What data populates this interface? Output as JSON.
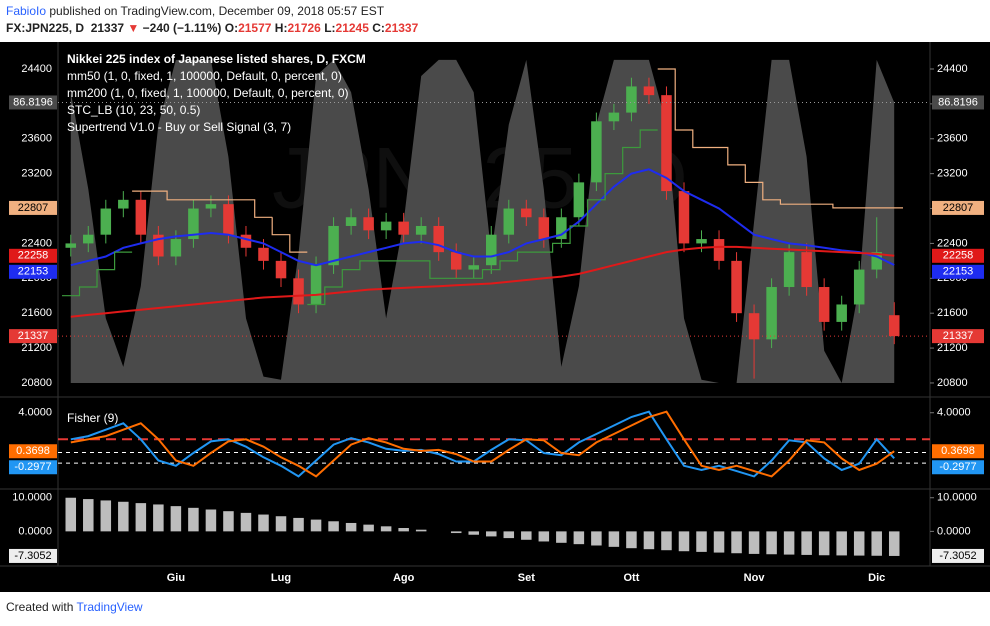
{
  "header": {
    "author": "FabioIo",
    "published": "published on TradingView.com, December 09, 2018 05:57 EST",
    "symbol": "FX:JPN225, D",
    "last": "21337",
    "arrow": "▼",
    "change": "−240 (−1.11%)",
    "open_label": "O:",
    "open": "21577",
    "high_label": "H:",
    "high": "21726",
    "low_label": "L:",
    "low": "21245",
    "close_label": "C:",
    "close": "21337"
  },
  "watermark": "JPN225, D",
  "chart_data": [
    {
      "type": "candlestick",
      "title": "Nikkei 225 index of Japanese listed shares, D, FXCM",
      "categories": [
        null,
        null,
        null,
        null,
        null,
        null,
        "Giu",
        null,
        null,
        null,
        null,
        null,
        "Lug",
        null,
        null,
        null,
        null,
        null,
        null,
        "Ago",
        null,
        null,
        null,
        null,
        null,
        null,
        "Set",
        null,
        null,
        null,
        null,
        null,
        "Ott",
        null,
        null,
        null,
        null,
        null,
        null,
        "Nov",
        null,
        null,
        null,
        null,
        null,
        null,
        "Dic",
        null
      ],
      "open": [
        22350,
        22400,
        22500,
        22800,
        22900,
        22500,
        22250,
        22450,
        22800,
        22850,
        22500,
        22350,
        22200,
        22000,
        21700,
        22150,
        22600,
        22700,
        22550,
        22650,
        22500,
        22600,
        22300,
        22100,
        22150,
        22500,
        22800,
        22700,
        22450,
        22700,
        23100,
        23800,
        23900,
        24200,
        24100,
        23000,
        22400,
        22450,
        22200,
        21600,
        21300,
        21900,
        22300,
        21900,
        21500,
        21700,
        22100,
        21577
      ],
      "high": [
        22500,
        22600,
        22900,
        23000,
        23000,
        22600,
        22550,
        22900,
        22950,
        22950,
        22600,
        22450,
        22300,
        22100,
        22250,
        22700,
        22800,
        22800,
        22750,
        22750,
        22700,
        22700,
        22400,
        22250,
        22600,
        22900,
        22900,
        22800,
        22800,
        23200,
        23900,
        24000,
        24300,
        24300,
        24200,
        23100,
        22550,
        22550,
        22300,
        21700,
        22000,
        22400,
        22400,
        22000,
        21800,
        22200,
        22700,
        21726
      ],
      "low": [
        22250,
        22300,
        22400,
        22700,
        22400,
        22150,
        22150,
        22350,
        22700,
        22400,
        22250,
        22100,
        21900,
        21600,
        21600,
        22050,
        22500,
        22450,
        22450,
        22400,
        22400,
        22200,
        22000,
        22000,
        22050,
        22400,
        22600,
        22350,
        22350,
        22600,
        23000,
        23700,
        23800,
        24000,
        22900,
        22300,
        22300,
        22100,
        21500,
        20850,
        21200,
        21800,
        21800,
        21400,
        21400,
        21600,
        22000,
        21245
      ],
      "close": [
        22400,
        22500,
        22800,
        22900,
        22500,
        22250,
        22450,
        22800,
        22850,
        22500,
        22350,
        22200,
        22000,
        21700,
        22150,
        22600,
        22700,
        22550,
        22650,
        22500,
        22600,
        22300,
        22100,
        22150,
        22500,
        22800,
        22700,
        22450,
        22700,
        23100,
        23800,
        23900,
        24200,
        24100,
        23000,
        22400,
        22450,
        22200,
        21600,
        21300,
        21900,
        22300,
        21900,
        21500,
        21700,
        22100,
        22300,
        21337
      ],
      "up_color": "#4caf50",
      "down_color": "#e53935",
      "ylim": [
        20662,
        24675
      ],
      "yticks": [
        20800,
        21200,
        21600,
        22000,
        22400,
        22800,
        23200,
        23600,
        24000,
        24400
      ],
      "y2lim": [
        -3.7,
        104.6
      ],
      "series": [
        {
          "name": "mm50 (1, 0, fixed, 1, 100000, Default, 0, percent, 0)",
          "kind": "line",
          "color": "#1e2cf0",
          "values": [
            22150,
            22200,
            22250,
            22350,
            22400,
            22450,
            22480,
            22500,
            22520,
            22500,
            22450,
            22400,
            22300,
            22200,
            22150,
            22200,
            22250,
            22300,
            22350,
            22400,
            22420,
            22380,
            22300,
            22250,
            22250,
            22300,
            22400,
            22450,
            22500,
            22650,
            22850,
            23050,
            23200,
            23250,
            23150,
            23000,
            22900,
            22800,
            22650,
            22500,
            22450,
            22400,
            22380,
            22350,
            22320,
            22300,
            22250,
            22153
          ]
        },
        {
          "name": "mm200 (1, 0, fixed, 1, 100000, Default, 0, percent, 0)",
          "kind": "line",
          "color": "#e01919",
          "values": [
            21560,
            21580,
            21600,
            21620,
            21640,
            21660,
            21680,
            21700,
            21720,
            21740,
            21760,
            21780,
            21790,
            21800,
            21810,
            21830,
            21850,
            21870,
            21880,
            21890,
            21900,
            21910,
            21920,
            21930,
            21940,
            21960,
            21980,
            22000,
            22020,
            22050,
            22100,
            22150,
            22200,
            22250,
            22300,
            22330,
            22350,
            22360,
            22360,
            22350,
            22340,
            22330,
            22320,
            22310,
            22300,
            22290,
            22280,
            22258
          ]
        },
        {
          "name": "STC_LB (10, 23, 50, 0.5)",
          "kind": "area",
          "axis": "y2",
          "color": "#4a4a4a",
          "values": [
            90,
            60,
            20,
            5,
            30,
            80,
            100,
            100,
            100,
            70,
            20,
            2,
            1,
            40,
            95,
            100,
            90,
            60,
            20,
            50,
            95,
            100,
            100,
            90,
            40,
            80,
            100,
            60,
            5,
            30,
            80,
            100,
            100,
            100,
            80,
            20,
            1,
            0,
            0,
            50,
            100,
            100,
            70,
            10,
            0,
            30,
            100,
            86.8196
          ]
        },
        {
          "name": "Supertrend V1.0 - Buy or Sell Signal (3, 7)",
          "kind": "step",
          "color": "#f0b080",
          "up_color": "#3c9a3c",
          "values": [
            21800,
            21900,
            22100,
            22300,
            23000,
            23000,
            22900,
            22900,
            22900,
            22900,
            22900,
            22700,
            22500,
            22300,
            21700,
            21900,
            22100,
            22200,
            22200,
            22200,
            22200,
            22000,
            22000,
            22000,
            22100,
            22200,
            22300,
            22300,
            22400,
            22600,
            22900,
            23200,
            23500,
            23700,
            24400,
            23700,
            23500,
            23500,
            23300,
            23100,
            22900,
            22850,
            22850,
            22850,
            22807,
            22807,
            22807,
            22807
          ]
        }
      ]
    },
    {
      "type": "line",
      "title": "Fisher (9)",
      "ylim": [
        -3,
        5.2
      ],
      "yticks": [
        {
          "value": 4,
          "label": "4.0000"
        }
      ],
      "levels": [
        1.5,
        0.25,
        -0.75
      ],
      "level_colors": [
        "#e53935",
        "#ffffff",
        "#ffffff"
      ],
      "series": [
        {
          "color": "#2196f3",
          "values": [
            1.5,
            1.8,
            2.4,
            3.0,
            1.5,
            -0.5,
            -1.0,
            0.2,
            1.3,
            1.5,
            0.8,
            -0.2,
            -1.0,
            -2.0,
            -0.5,
            1.0,
            1.6,
            1.2,
            0.6,
            0.4,
            0.5,
            0.1,
            -0.6,
            -0.6,
            0.5,
            1.5,
            1.4,
            0.2,
            0.0,
            1.2,
            2.0,
            2.8,
            3.6,
            4.1,
            1.5,
            -1.0,
            -1.4,
            -1.0,
            -1.5,
            -2.0,
            -0.5,
            1.4,
            1.2,
            -0.3,
            -1.4,
            -0.8,
            1.5,
            -0.2977
          ]
        },
        {
          "color": "#ff6d00",
          "values": [
            1.2,
            1.5,
            1.8,
            2.4,
            3.0,
            1.5,
            -0.5,
            -1.0,
            0.2,
            1.3,
            1.5,
            0.8,
            -0.2,
            -1.0,
            -2.0,
            -0.5,
            1.0,
            1.6,
            1.2,
            0.6,
            0.4,
            0.5,
            0.1,
            -0.6,
            -0.6,
            0.5,
            1.5,
            1.4,
            0.2,
            0.0,
            1.2,
            2.0,
            2.8,
            3.6,
            4.1,
            1.5,
            -1.0,
            -1.4,
            -1.0,
            -1.5,
            -2.0,
            -0.5,
            1.4,
            1.2,
            -0.3,
            -1.4,
            -0.8,
            0.3698
          ]
        }
      ]
    },
    {
      "type": "bar",
      "ylim": [
        -9.7,
        12.3
      ],
      "yticks": [
        {
          "value": 10,
          "label": "10.0000"
        },
        {
          "value": 0,
          "label": "0.0000"
        }
      ],
      "color": "#bdbdbd",
      "values": [
        10,
        9.6,
        9.2,
        8.8,
        8.4,
        8.0,
        7.5,
        7.0,
        6.5,
        6.0,
        5.5,
        5.0,
        4.5,
        4.0,
        3.5,
        3.0,
        2.5,
        2.0,
        1.5,
        1.0,
        0.5,
        0,
        -0.5,
        -1.0,
        -1.5,
        -2.0,
        -2.5,
        -3.0,
        -3.4,
        -3.8,
        -4.2,
        -4.6,
        -5.0,
        -5.3,
        -5.6,
        -5.9,
        -6.1,
        -6.3,
        -6.5,
        -6.7,
        -6.8,
        -6.9,
        -7.0,
        -7.1,
        -7.15,
        -7.2,
        -7.25,
        -7.3052
      ]
    }
  ],
  "footer": {
    "created": "Created with",
    "brand": "TradingView"
  }
}
